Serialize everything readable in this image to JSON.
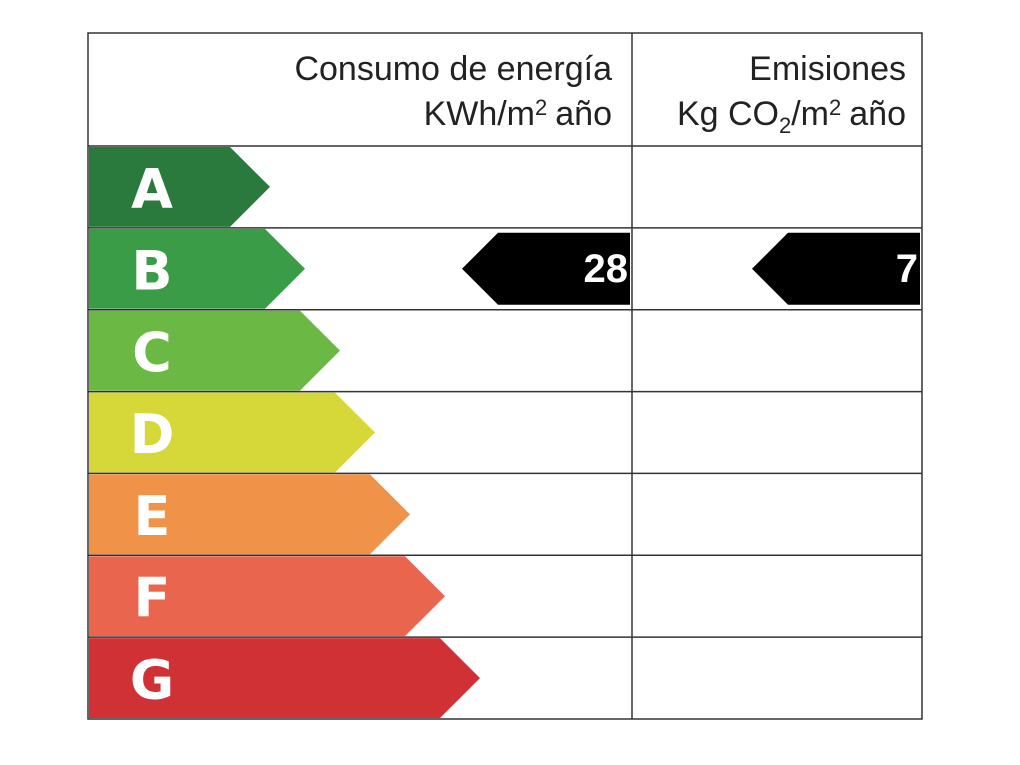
{
  "header": {
    "consumption": {
      "title": "Consumo de energía",
      "unit": [
        "KWh/m",
        "2",
        "año"
      ]
    },
    "emissions": {
      "title": "Emisiones",
      "unit": [
        "Kg CO",
        "2",
        "/m",
        "2",
        "año"
      ]
    }
  },
  "rows": [
    {
      "label": "A",
      "color": "#2b7a3d"
    },
    {
      "label": "B",
      "color": "#3a9c46",
      "consumption": 28,
      "emissions": 7
    },
    {
      "label": "C",
      "color": "#6cb844"
    },
    {
      "label": "D",
      "color": "#d6d83a"
    },
    {
      "label": "E",
      "color": "#f09247"
    },
    {
      "label": "F",
      "color": "#e9654e"
    },
    {
      "label": "G",
      "color": "#cf3135"
    }
  ]
}
